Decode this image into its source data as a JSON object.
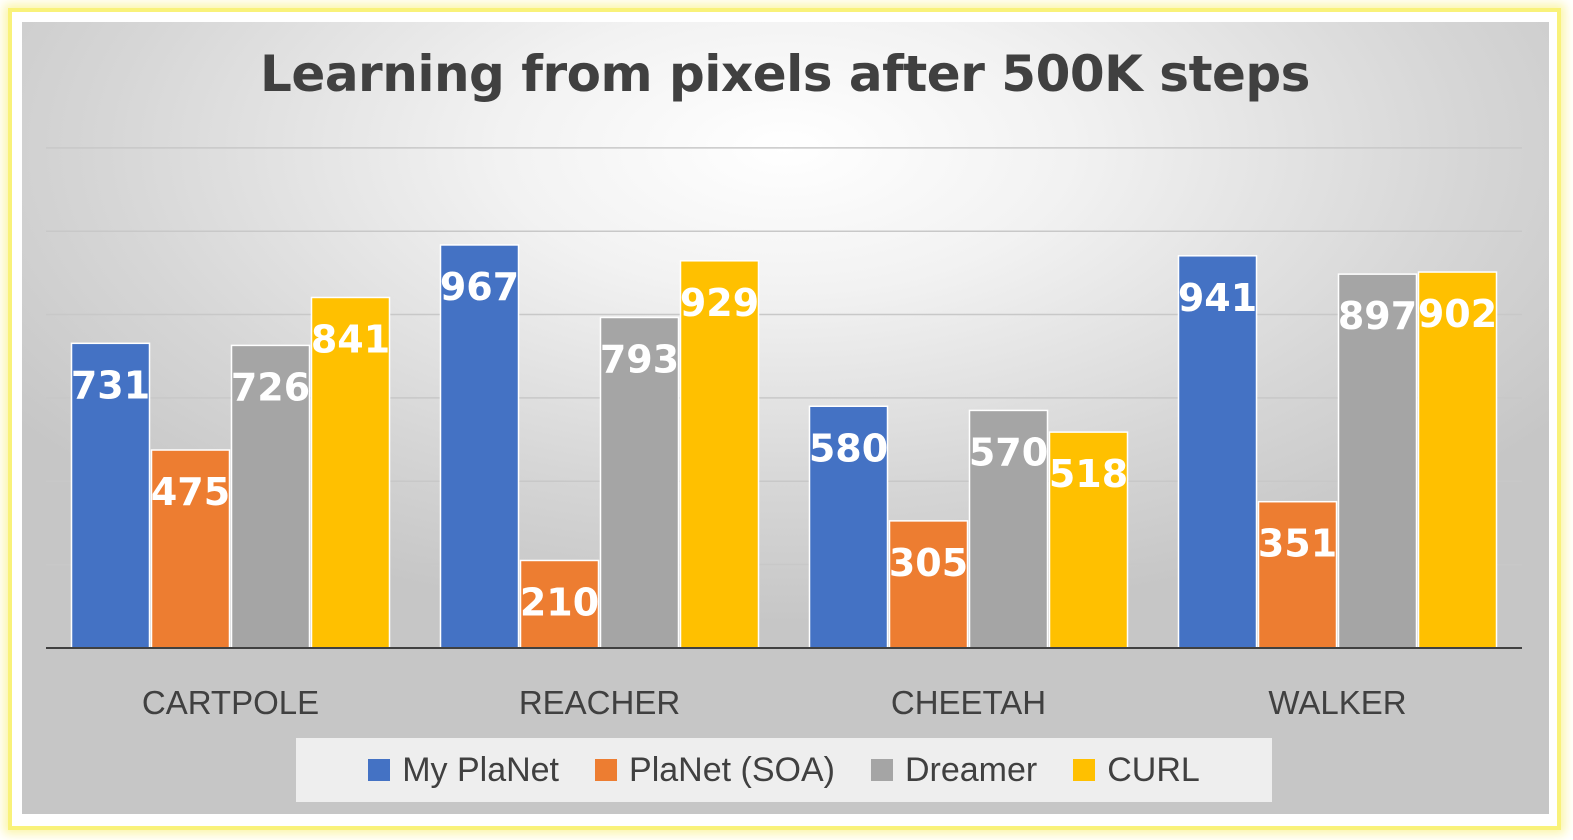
{
  "chart_data": {
    "type": "bar",
    "title": "Learning from pixels after 500K steps",
    "categories": [
      "CARTPOLE",
      "REACHER",
      "CHEETAH",
      "WALKER"
    ],
    "series": [
      {
        "name": "My PlaNet",
        "color": "#4472c4",
        "values": [
          731,
          967,
          580,
          941
        ]
      },
      {
        "name": "PlaNet (SOA)",
        "color": "#ed7d31",
        "values": [
          475,
          210,
          305,
          351
        ]
      },
      {
        "name": "Dreamer",
        "color": "#a5a5a5",
        "values": [
          726,
          793,
          570,
          897
        ]
      },
      {
        "name": "CURL",
        "color": "#ffc000",
        "values": [
          841,
          929,
          518,
          902
        ]
      }
    ],
    "ylim": [
      0,
      1200
    ],
    "grid": true,
    "data_labels": true,
    "legend_position": "bottom",
    "xlabel": "",
    "ylabel": ""
  }
}
